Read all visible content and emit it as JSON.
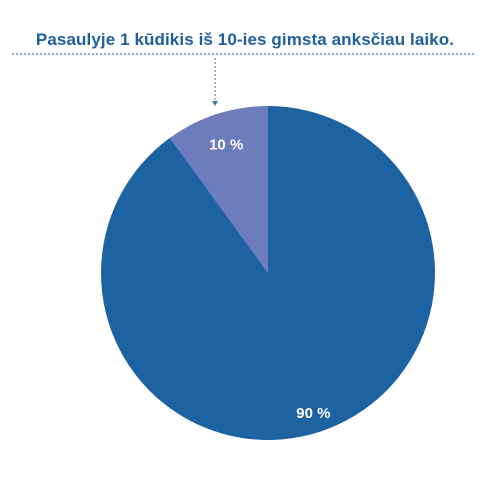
{
  "chart_data": {
    "type": "pie",
    "title": "Pasaulyje 1 kūdikis iš 10-ies gimsta anksčiau laiko.",
    "slices": [
      {
        "value": 10,
        "label": "10 %",
        "color": "#6c7cbc"
      },
      {
        "value": 90,
        "label": "90 %",
        "color": "#1d62a1"
      }
    ],
    "start": "top, clockwise, smaller slice counter-clockwise of 12 o'clock",
    "legend": "none"
  }
}
